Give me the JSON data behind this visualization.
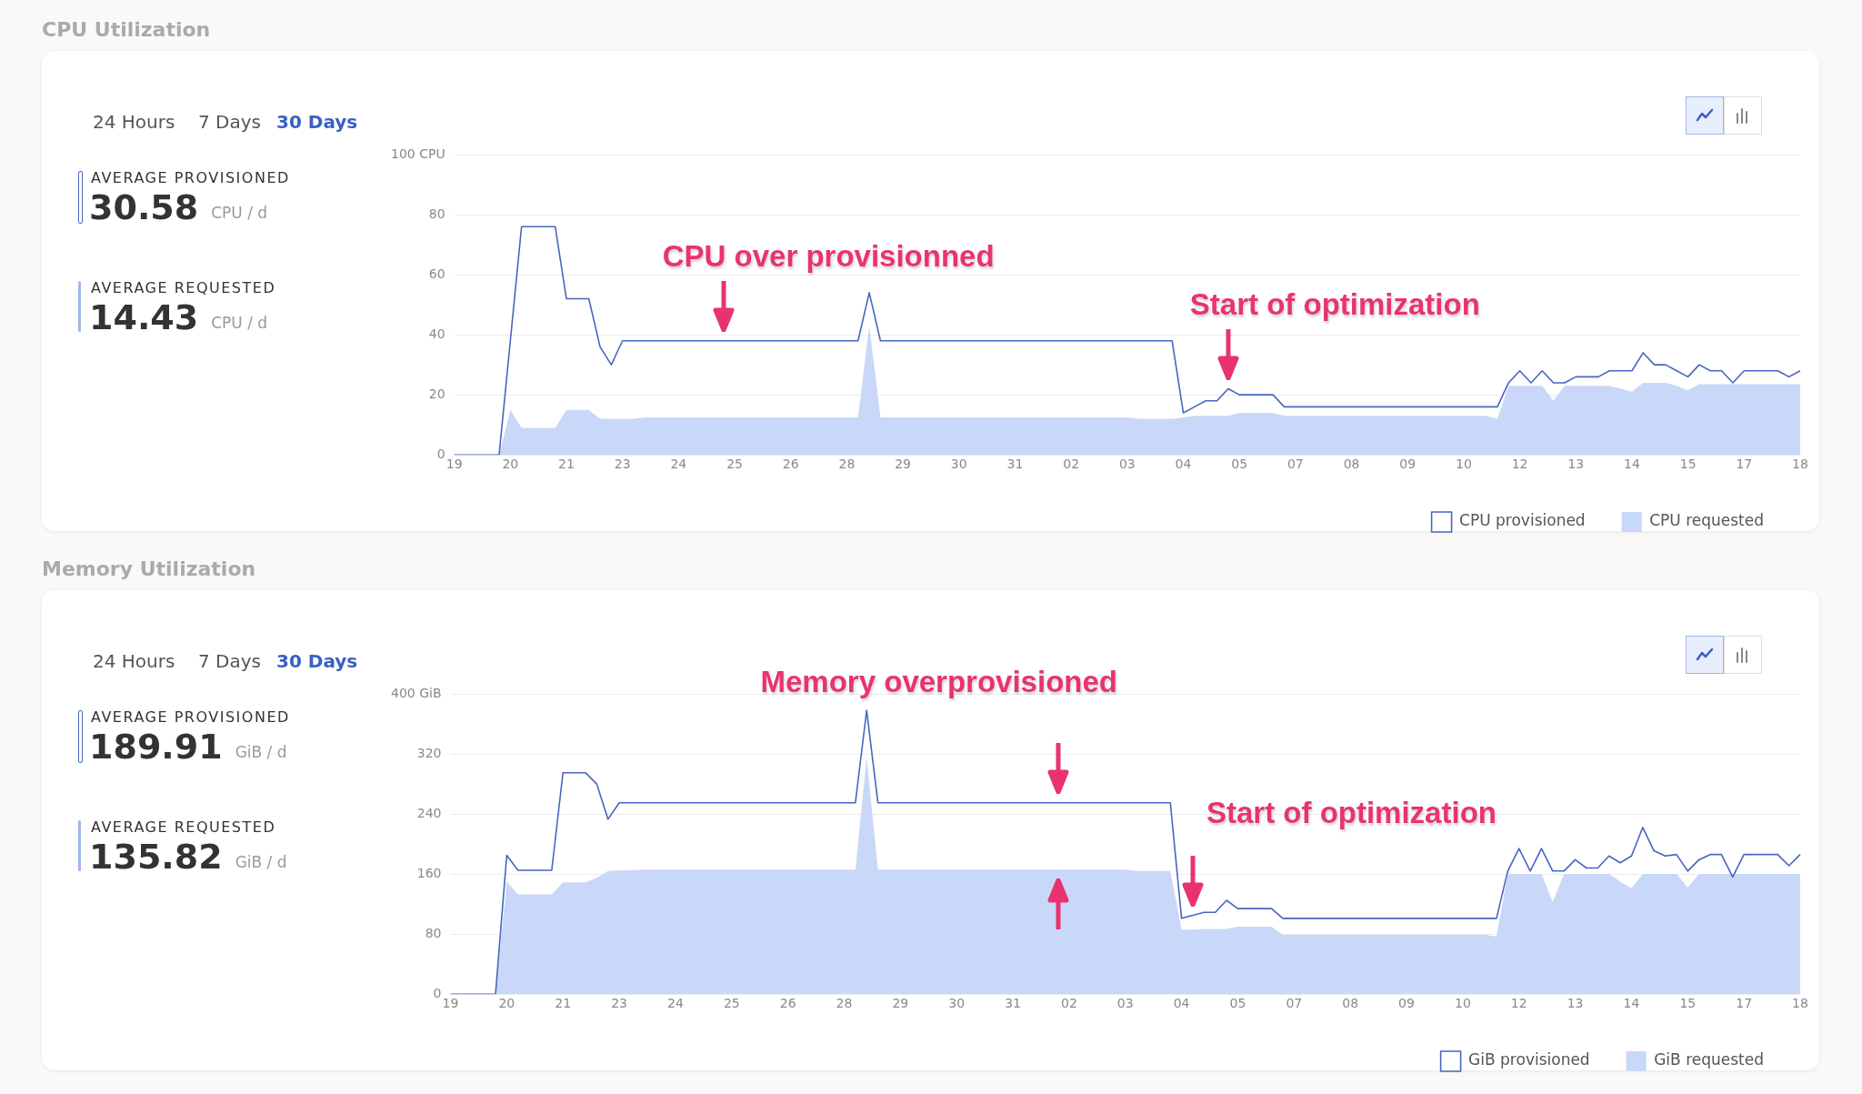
{
  "chart_data": [
    {
      "type": "other",
      "title": "CPU Utilization",
      "annotations": [
        "24 Hours",
        "7 Days",
        "30 Days",
        "AVERAGE PROVISIONED",
        "30.58",
        "CPU / d",
        "AVERAGE REQUESTED",
        "14.43",
        "CPU / d"
      ]
    },
    {
      "type": "line",
      "categories": [
        "19",
        null,
        null,
        null,
        null,
        "20",
        null,
        null,
        null,
        null,
        "21",
        null,
        null,
        null,
        null,
        "23",
        null,
        null,
        null,
        null,
        "24",
        null,
        null,
        null,
        null,
        "25",
        null,
        null,
        null,
        null,
        "26",
        null,
        null,
        null,
        null,
        "28",
        null,
        null,
        null,
        null,
        "29",
        null,
        null,
        null,
        null,
        "30",
        null,
        null,
        null,
        null,
        "31",
        null,
        null,
        null,
        null,
        "02",
        null,
        null,
        null,
        null,
        "03",
        null,
        null,
        null,
        null,
        "04",
        null,
        null,
        null,
        null,
        "05",
        null,
        null,
        null,
        null,
        "07",
        null,
        null,
        null,
        null,
        "08",
        null,
        null,
        null,
        null,
        "09",
        null,
        null,
        null,
        null,
        "10",
        null,
        null,
        null,
        null,
        "12",
        null,
        null,
        null,
        null,
        "13",
        null,
        null,
        null,
        null,
        "14",
        null,
        null,
        null,
        null,
        "15",
        null,
        null,
        null,
        null,
        "17",
        null,
        null,
        null,
        null,
        "18"
      ],
      "ylim": [
        0,
        100
      ],
      "yticks": [
        0,
        20,
        40,
        60,
        80,
        {
          "value": 100,
          "label": "100 CPU"
        }
      ],
      "grid": "y",
      "legend": "bottom right",
      "marker": "none",
      "series": [
        {
          "name": "CPU provisioned",
          "type": "line",
          "color": "#4766bf",
          "values": [
            0,
            0,
            0,
            0,
            0,
            38,
            76,
            76,
            76,
            76,
            52,
            52,
            52,
            36,
            30,
            38,
            38,
            38,
            38,
            38,
            38,
            38,
            38,
            38,
            38,
            38,
            38,
            38,
            38,
            38,
            38,
            38,
            38,
            38,
            38,
            38,
            38,
            54,
            38,
            38,
            38,
            38,
            38,
            38,
            38,
            38,
            38,
            38,
            38,
            38,
            38,
            38,
            38,
            38,
            38,
            38,
            38,
            38,
            38,
            38,
            38,
            38,
            38,
            38,
            38,
            14,
            16,
            18,
            18,
            22,
            20,
            20,
            20,
            20,
            16,
            16,
            16,
            16,
            16,
            16,
            16,
            16,
            16,
            16,
            16,
            16,
            16,
            16,
            16,
            16,
            16,
            16,
            16,
            16,
            24,
            28,
            24,
            28,
            24,
            24,
            26,
            26,
            26,
            28,
            28,
            28,
            34,
            30,
            30,
            28,
            26,
            30,
            28,
            28,
            24,
            28,
            28,
            28,
            28,
            26,
            28
          ]
        },
        {
          "name": "CPU requested",
          "type": "area",
          "color": "#c9d8f8",
          "values": [
            0,
            0,
            0,
            0,
            0,
            15,
            9,
            9,
            9,
            9,
            15,
            15,
            15,
            12,
            12,
            12,
            12,
            12.5,
            12.5,
            12.5,
            12.5,
            12.5,
            12.5,
            12.5,
            12.5,
            12.5,
            12.5,
            12.5,
            12.5,
            12.5,
            12.5,
            12.5,
            12.5,
            12.5,
            12.5,
            12.5,
            12.5,
            43,
            12.5,
            12.5,
            12.5,
            12.5,
            12.5,
            12.5,
            12.5,
            12.5,
            12.5,
            12.5,
            12.5,
            12.5,
            12.5,
            12.5,
            12.5,
            12.5,
            12.5,
            12.5,
            12.5,
            12.5,
            12.5,
            12.5,
            12.5,
            12,
            12,
            12,
            12,
            12.5,
            13,
            13,
            13,
            13,
            14,
            14,
            14,
            14,
            13,
            13,
            13,
            13,
            13,
            13,
            13,
            13,
            13,
            13,
            13,
            13,
            13,
            13,
            13,
            13,
            13,
            13,
            13,
            12,
            23,
            23,
            23,
            23,
            18,
            23,
            23,
            23,
            23,
            23,
            22,
            21,
            24,
            24,
            24,
            23,
            21.5,
            23.5,
            23.5,
            23.5,
            23.5,
            23.5,
            23.5,
            23.5,
            23.5,
            23.5,
            23.5
          ]
        }
      ],
      "annotations": [
        "CPU over provisionned",
        "Start of optimization"
      ]
    },
    {
      "type": "other",
      "title": "Memory Utilization",
      "annotations": [
        "24 Hours",
        "7 Days",
        "30 Days",
        "AVERAGE PROVISIONED",
        "189.91",
        "GiB / d",
        "AVERAGE REQUESTED",
        "135.82",
        "GiB / d"
      ]
    },
    {
      "type": "line",
      "categories": [
        "19",
        null,
        null,
        null,
        null,
        "20",
        null,
        null,
        null,
        null,
        "21",
        null,
        null,
        null,
        null,
        "23",
        null,
        null,
        null,
        null,
        "24",
        null,
        null,
        null,
        null,
        "25",
        null,
        null,
        null,
        null,
        "26",
        null,
        null,
        null,
        null,
        "28",
        null,
        null,
        null,
        null,
        "29",
        null,
        null,
        null,
        null,
        "30",
        null,
        null,
        null,
        null,
        "31",
        null,
        null,
        null,
        null,
        "02",
        null,
        null,
        null,
        null,
        "03",
        null,
        null,
        null,
        null,
        "04",
        null,
        null,
        null,
        null,
        "05",
        null,
        null,
        null,
        null,
        "07",
        null,
        null,
        null,
        null,
        "08",
        null,
        null,
        null,
        null,
        "09",
        null,
        null,
        null,
        null,
        "10",
        null,
        null,
        null,
        null,
        "12",
        null,
        null,
        null,
        null,
        "13",
        null,
        null,
        null,
        null,
        "14",
        null,
        null,
        null,
        null,
        "15",
        null,
        null,
        null,
        null,
        "17",
        null,
        null,
        null,
        null,
        "18"
      ],
      "ylim": [
        0,
        400
      ],
      "yticks": [
        0,
        80,
        160,
        240,
        320,
        {
          "value": 400,
          "label": "400 GiB"
        }
      ],
      "grid": "y",
      "legend": "bottom right",
      "marker": "none",
      "series": [
        {
          "name": "GiB provisioned",
          "type": "line",
          "color": "#4766bf",
          "values": [
            0,
            0,
            0,
            0,
            0,
            185,
            165,
            165,
            165,
            165,
            295,
            295,
            295,
            280,
            233,
            255,
            255,
            255,
            255,
            255,
            255,
            255,
            255,
            255,
            255,
            255,
            255,
            255,
            255,
            255,
            255,
            255,
            255,
            255,
            255,
            255,
            255,
            378,
            255,
            255,
            255,
            255,
            255,
            255,
            255,
            255,
            255,
            255,
            255,
            255,
            255,
            255,
            255,
            255,
            255,
            255,
            255,
            255,
            255,
            255,
            255,
            255,
            255,
            255,
            255,
            101,
            105,
            109,
            109,
            125,
            114,
            114,
            114,
            114,
            101,
            101,
            101,
            101,
            101,
            101,
            101,
            101,
            101,
            101,
            101,
            101,
            101,
            101,
            101,
            101,
            101,
            101,
            101,
            101,
            164,
            194,
            164,
            194,
            164,
            164,
            179,
            168,
            168,
            184,
            175,
            184,
            222,
            191,
            184,
            186,
            164,
            179,
            186,
            186,
            156,
            186,
            186,
            186,
            186,
            171,
            186
          ]
        },
        {
          "name": "GiB requested",
          "type": "area",
          "color": "#c9d8f8",
          "values": [
            0,
            0,
            0,
            0,
            0,
            150,
            133,
            133,
            133,
            133,
            149,
            149,
            149,
            155,
            164,
            165,
            165,
            166,
            166,
            166,
            166,
            166,
            166,
            166,
            166,
            166,
            166,
            166,
            166,
            166,
            166,
            166,
            166,
            166,
            166,
            166,
            166,
            316,
            166,
            166,
            166,
            166,
            166,
            166,
            166,
            166,
            166,
            166,
            166,
            166,
            166,
            166,
            166,
            166,
            166,
            166,
            166,
            166,
            166,
            166,
            166,
            164,
            164,
            164,
            164,
            86,
            86,
            87,
            87,
            87,
            90,
            90,
            90,
            90,
            79,
            79,
            79,
            79,
            79,
            79,
            79,
            79,
            79,
            79,
            79,
            79,
            79,
            79,
            79,
            79,
            79,
            79,
            79,
            77,
            160,
            160,
            160,
            160,
            123,
            160,
            160,
            160,
            160,
            160,
            150,
            141,
            160,
            160,
            160,
            160,
            142,
            160,
            160,
            160,
            160,
            160,
            160,
            160,
            160,
            160,
            160
          ]
        }
      ],
      "annotations": [
        "Memory overprovisioned",
        "Start of optimization"
      ]
    }
  ]
}
